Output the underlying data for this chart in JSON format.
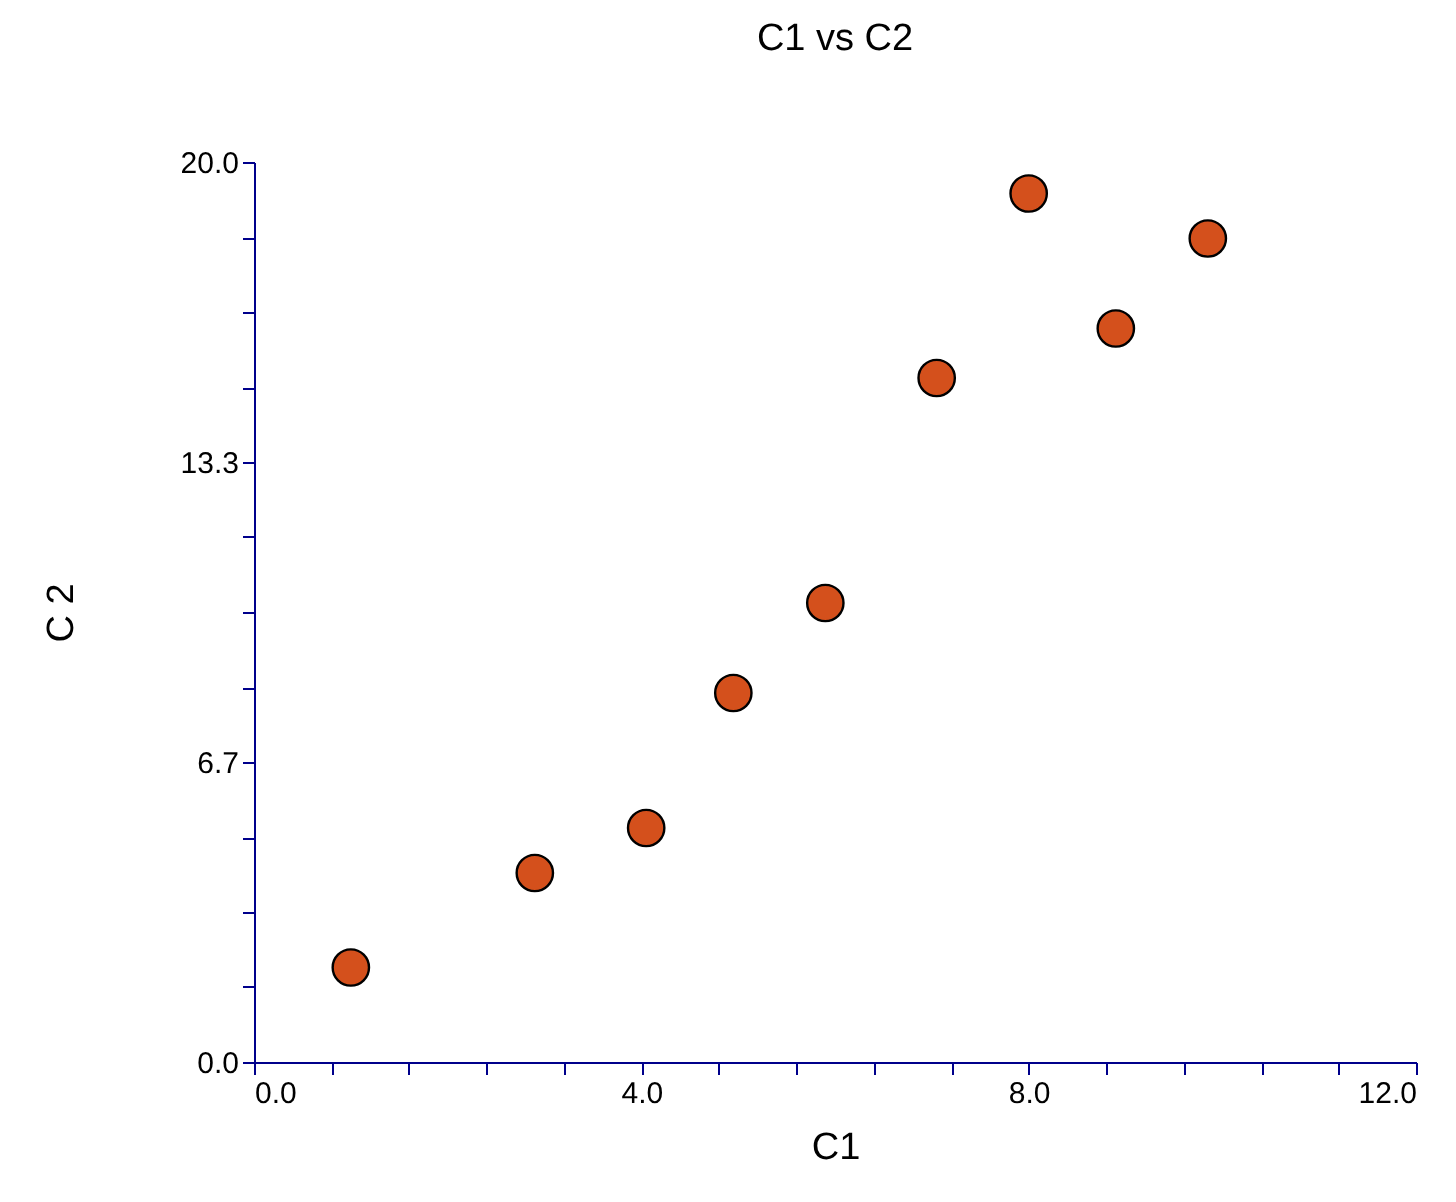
{
  "chart_data": {
    "type": "scatter",
    "title": "C1 vs C2",
    "xlabel": "C1",
    "ylabel": "C 2",
    "x": [
      1.0,
      2.9,
      4.05,
      4.95,
      5.9,
      7.05,
      8.0,
      8.9,
      9.85
    ],
    "series": [
      {
        "color": "#d4501c",
        "values": [
          2.1,
          4.2,
          5.2,
          8.2,
          10.2,
          15.2,
          19.3,
          16.3,
          18.3
        ]
      }
    ],
    "xlim": [
      0,
      12
    ],
    "xticks": [
      {
        "value": 0,
        "label": "0.0"
      },
      {
        "value": 0.8,
        "label": null
      },
      {
        "value": 1.6,
        "label": null
      },
      {
        "value": 2.4,
        "label": null
      },
      {
        "value": 3.2,
        "label": null
      },
      {
        "value": 4,
        "label": "4.0"
      },
      {
        "value": 4.8,
        "label": null
      },
      {
        "value": 5.6,
        "label": null
      },
      {
        "value": 6.4,
        "label": null
      },
      {
        "value": 7.2,
        "label": null
      },
      {
        "value": 8,
        "label": "8.0"
      },
      {
        "value": 8.8,
        "label": null
      },
      {
        "value": 9.6,
        "label": null
      },
      {
        "value": 10.4,
        "label": null
      },
      {
        "value": 11.2,
        "label": null
      },
      {
        "value": 12,
        "label": "12.0"
      }
    ],
    "ylim": [
      0,
      20
    ],
    "yticks": [
      {
        "value": 0,
        "label": "0.0"
      },
      {
        "value": 1.667,
        "label": null
      },
      {
        "value": 3.333,
        "label": null
      },
      {
        "value": 5,
        "label": null
      },
      {
        "value": 6.667,
        "label": "6.7"
      },
      {
        "value": 8.333,
        "label": null
      },
      {
        "value": 10,
        "label": null
      },
      {
        "value": 11.667,
        "label": null
      },
      {
        "value": 13.333,
        "label": "13.3"
      },
      {
        "value": 15,
        "label": null
      },
      {
        "value": 16.667,
        "label": null
      },
      {
        "value": 18.333,
        "label": null
      },
      {
        "value": 20,
        "label": "20.0"
      }
    ],
    "grid": false,
    "marker": "circle"
  }
}
